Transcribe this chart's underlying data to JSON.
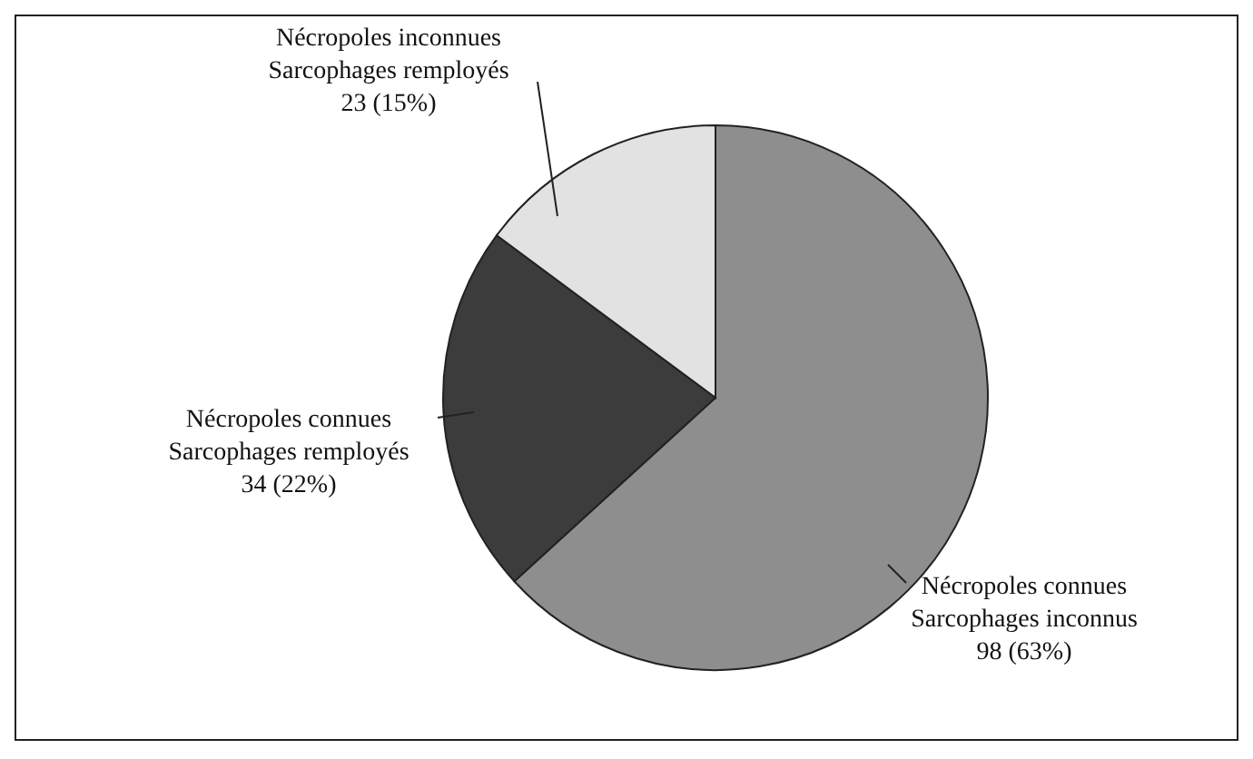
{
  "chart_data": {
    "type": "pie",
    "categories": [
      "Nécropoles connues\nSarcophages inconnus",
      "Nécropoles connues\nSarcophages remployés",
      "Nécropoles inconnues\nSarcophages remployés"
    ],
    "values": [
      98,
      34,
      23
    ],
    "value_labels": [
      "98 (63%)",
      "34 (22%)",
      "23 (15%)"
    ],
    "colors": [
      "#8e8e8e",
      "#3c3c3c",
      "#e2e2e2"
    ]
  }
}
